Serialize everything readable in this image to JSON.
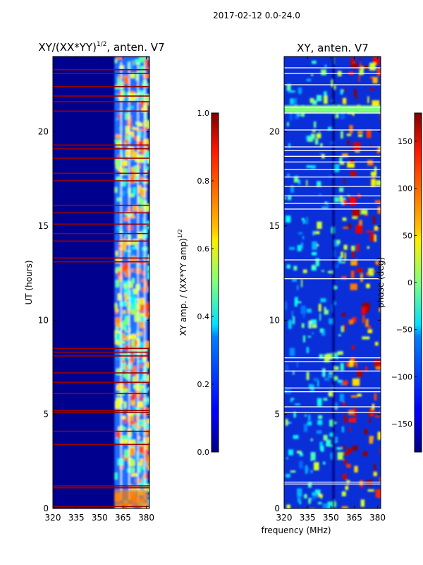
{
  "figure_title": "2017-02-12 0.0-24.0",
  "chart_data": [
    {
      "type": "heatmap",
      "title": "XY/(XX*YY)^{1/2}, anten. V7",
      "title_main": "XY/(XX*YY)",
      "title_exp": "1/2",
      "title_tail": ", anten. V7",
      "ylabel": "UT (hours)",
      "xlim": [
        320,
        382
      ],
      "ylim": [
        0,
        24
      ],
      "xticks": [
        320,
        335,
        350,
        365,
        380
      ],
      "yticks": [
        0,
        5,
        10,
        15,
        20
      ],
      "colorbar": {
        "label": "XY amp. / (XX*YY amp)^{1/2}",
        "label_main": "XY amp. / (XX*YY amp)",
        "label_exp": "1/2",
        "range": [
          0,
          1
        ],
        "ticks": [
          0.0,
          0.2,
          0.4,
          0.6,
          0.8,
          1.0
        ],
        "tick_labels": [
          "0.0",
          "0.2",
          "0.4",
          "0.6",
          "0.8",
          "1.0"
        ],
        "colormap": "jet"
      },
      "band_start_mhz": 359.5,
      "flagged_hours": [
        0.1,
        1.1,
        1.2,
        3.4,
        4.1,
        5.1,
        5.2,
        6.1,
        6.7,
        7.2,
        8.1,
        8.3,
        8.5,
        13.1,
        13.3,
        14.2,
        14.6,
        15.1,
        15.7,
        16.1,
        17.4,
        17.8,
        18.6,
        19.1,
        19.3,
        21.1,
        21.6,
        21.9,
        22.4,
        23.1,
        23.3
      ]
    },
    {
      "type": "heatmap",
      "title": "XY, anten. V7",
      "xlim": [
        320,
        382
      ],
      "ylim": [
        0,
        24
      ],
      "xticks": [
        320,
        335,
        350,
        365,
        380
      ],
      "yticks": [
        0,
        5,
        10,
        15,
        20
      ],
      "colorbar": {
        "label": "phase (deg)",
        "range": [
          -180,
          180
        ],
        "ticks": [
          -150,
          -100,
          -50,
          0,
          50,
          100,
          150
        ],
        "tick_labels": [
          "−150",
          "−100",
          "−50",
          "0",
          "50",
          "100",
          "150"
        ],
        "colormap": "jet"
      },
      "flagged_hours": [
        1.3,
        1.4,
        5.1,
        5.4,
        6.2,
        6.4,
        7.3,
        7.8,
        8.0,
        12.2,
        13.2,
        15.9,
        16.2,
        16.6,
        17.1,
        17.6,
        18.0,
        18.4,
        18.7,
        19.0,
        19.2,
        20.1,
        21.0,
        21.3,
        22.5,
        23.1,
        23.4
      ],
      "saturated_band_hours": [
        21.0,
        21.4
      ]
    }
  ],
  "shared_xlabel": "frequency (MHz)",
  "colors": {
    "background": "#00008f",
    "flag_line_left": "#9a0000",
    "flag_line_right": "#ffffff",
    "saturated_band": "#7fff7a"
  }
}
